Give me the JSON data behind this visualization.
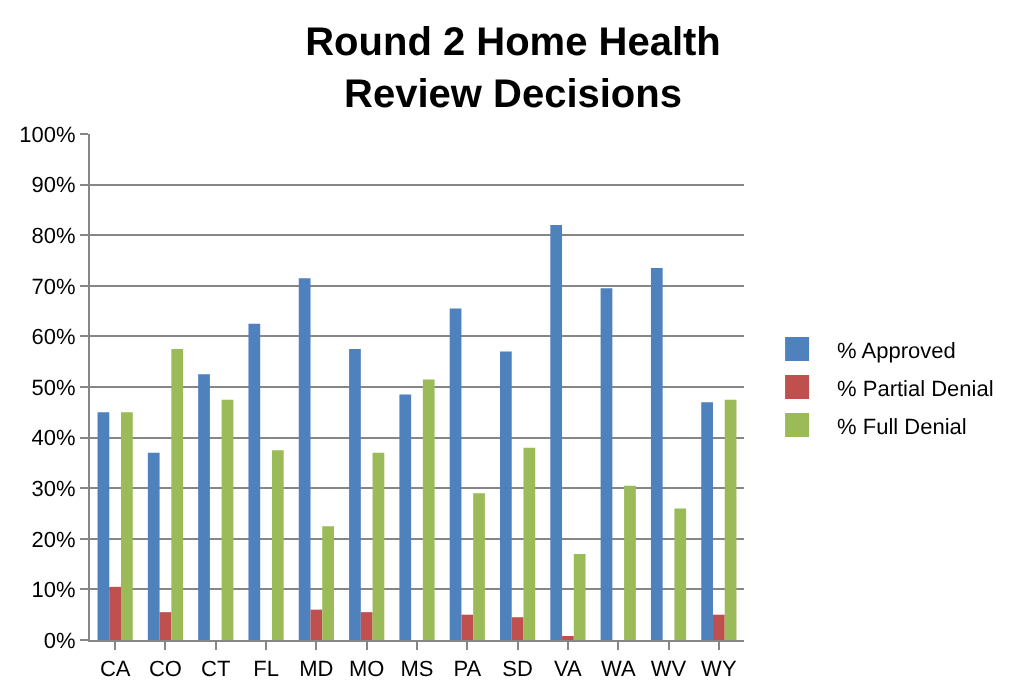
{
  "chart_data": {
    "type": "bar",
    "title": "Round 2 Home Health\nReview Decisions",
    "categories": [
      "CA",
      "CO",
      "CT",
      "FL",
      "MD",
      "MO",
      "MS",
      "PA",
      "SD",
      "VA",
      "WA",
      "WV",
      "WY"
    ],
    "series": [
      {
        "name": "% Approved",
        "color": "#4f81bd",
        "values": [
          45,
          37,
          52.5,
          62.5,
          71.5,
          57.5,
          48.5,
          65.5,
          57,
          82,
          69.5,
          73.5,
          47
        ]
      },
      {
        "name": "% Partial Denial",
        "color": "#c0504d",
        "values": [
          10.5,
          5.5,
          0,
          0,
          6,
          5.5,
          0,
          5,
          4.5,
          0.5,
          0,
          0,
          5
        ]
      },
      {
        "name": "% Full Denial",
        "color": "#9bbb59",
        "values": [
          45,
          57.5,
          47.5,
          37.5,
          22.5,
          37,
          51.5,
          29,
          38,
          17,
          30.5,
          26,
          47.5
        ]
      }
    ],
    "ylim": [
      0,
      100
    ],
    "yticks": [
      {
        "value": 0,
        "label": "0%"
      },
      {
        "value": 10,
        "label": "10%"
      },
      {
        "value": 20,
        "label": "20%"
      },
      {
        "value": 30,
        "label": "30%"
      },
      {
        "value": 40,
        "label": "40%"
      },
      {
        "value": 50,
        "label": "50%"
      },
      {
        "value": 60,
        "label": "60%"
      },
      {
        "value": 70,
        "label": "70%"
      },
      {
        "value": 80,
        "label": "80%"
      },
      {
        "value": 90,
        "label": "90%"
      },
      {
        "value": 100,
        "label": "100%"
      }
    ],
    "grid": "y",
    "legend": "right"
  }
}
